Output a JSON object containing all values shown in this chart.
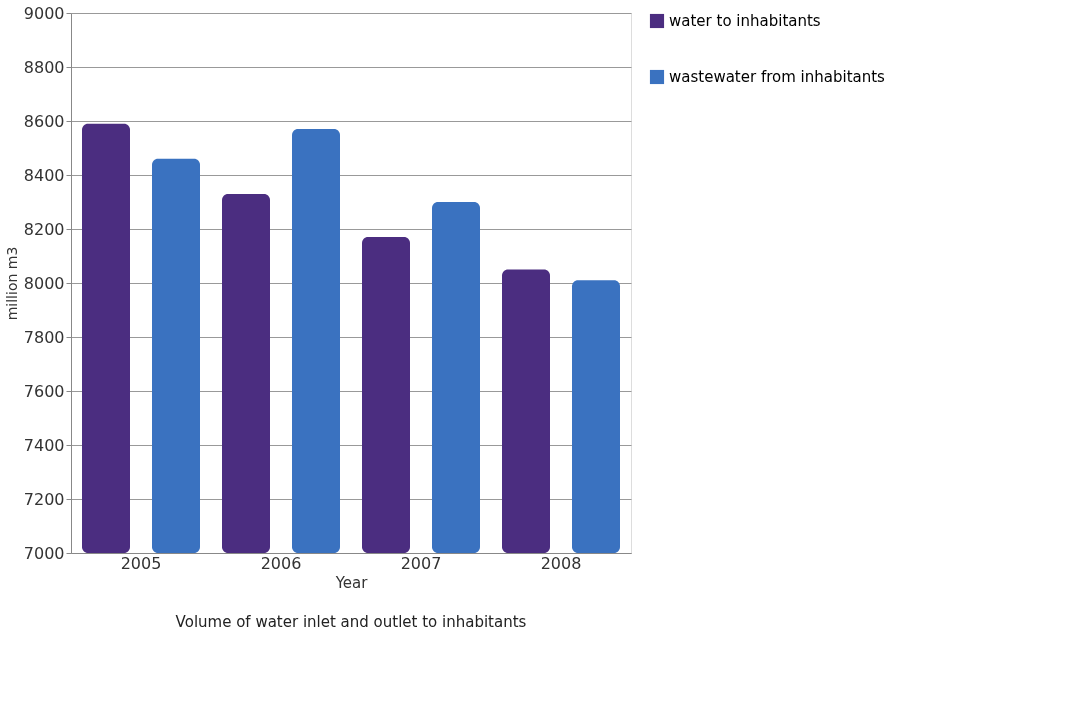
{
  "chart_data": {
    "type": "bar",
    "categories": [
      "2005",
      "2006",
      "2007",
      "2008"
    ],
    "series": [
      {
        "name": "water to inhabitants",
        "color": "#4b2d80",
        "values": [
          8590,
          8330,
          8170,
          8050
        ]
      },
      {
        "name": "wastewater from inhabitants",
        "color": "#3a72c0",
        "values": [
          8460,
          8570,
          8300,
          8010
        ]
      }
    ],
    "xlabel": "Year",
    "ylabel": "million m3",
    "ylim": [
      7000,
      9000
    ],
    "yticks": [
      7000,
      7200,
      7400,
      7600,
      7800,
      8000,
      8200,
      8400,
      8600,
      8800,
      9000
    ],
    "grid": "y",
    "legend": "right",
    "annotations": [
      "Volume of water inlet and outlet to inhabitants"
    ]
  }
}
